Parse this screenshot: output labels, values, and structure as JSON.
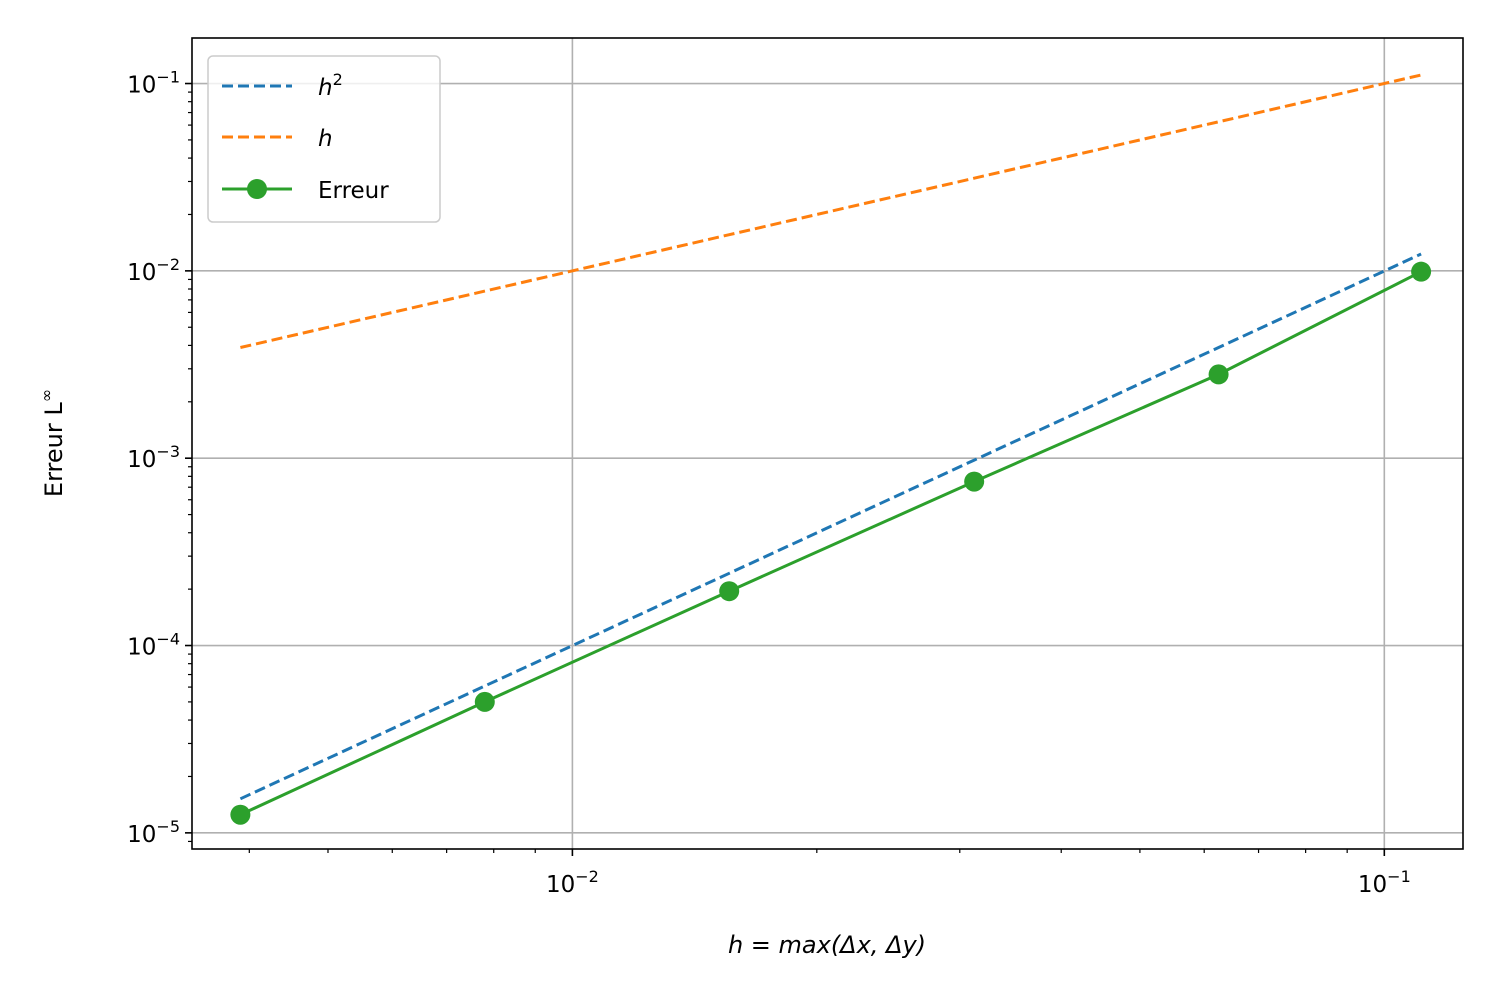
{
  "chart_data": {
    "type": "line",
    "xscale": "log",
    "yscale": "log",
    "xlim": [
      0.0034,
      0.125
    ],
    "ylim": [
      8.2e-06,
      0.175
    ],
    "grid": true,
    "legend_position": "top-left",
    "xlabel": {
      "main": "h = max(Δx, Δy)"
    },
    "ylabel": {
      "main": "Erreur L",
      "sup": "∞"
    },
    "x_ticks": [
      {
        "value": 0.01,
        "base": "10",
        "exp": "−2"
      },
      {
        "value": 0.1,
        "base": "10",
        "exp": "−1"
      }
    ],
    "y_ticks": [
      {
        "value": 1e-05,
        "base": "10",
        "exp": "−5"
      },
      {
        "value": 0.0001,
        "base": "10",
        "exp": "−4"
      },
      {
        "value": 0.001,
        "base": "10",
        "exp": "−3"
      },
      {
        "value": 0.01,
        "base": "10",
        "exp": "−2"
      },
      {
        "value": 0.1,
        "base": "10",
        "exp": "−1"
      }
    ],
    "series": [
      {
        "name": "h",
        "name_sup": "2",
        "style": "dashed",
        "color": "#1f77b4",
        "x": [
          0.0039,
          0.0078,
          0.0156,
          0.03125,
          0.0625,
          0.111
        ],
        "y": [
          1.52e-05,
          6.08e-05,
          0.000243,
          0.000977,
          0.0039,
          0.0123
        ]
      },
      {
        "name": "h",
        "name_sup": "",
        "style": "dashed",
        "color": "#ff7f0e",
        "x": [
          0.0039,
          0.0078,
          0.0156,
          0.03125,
          0.0625,
          0.111
        ],
        "y": [
          0.0039,
          0.0078,
          0.0156,
          0.03125,
          0.0625,
          0.111
        ]
      },
      {
        "name": "Erreur",
        "name_sup": "",
        "style": "solid-markers",
        "color": "#2ca02c",
        "x": [
          0.0039,
          0.0078,
          0.0156,
          0.03125,
          0.0625,
          0.111
        ],
        "y": [
          1.25e-05,
          5e-05,
          0.000195,
          0.00075,
          0.0028,
          0.0099
        ]
      }
    ]
  }
}
